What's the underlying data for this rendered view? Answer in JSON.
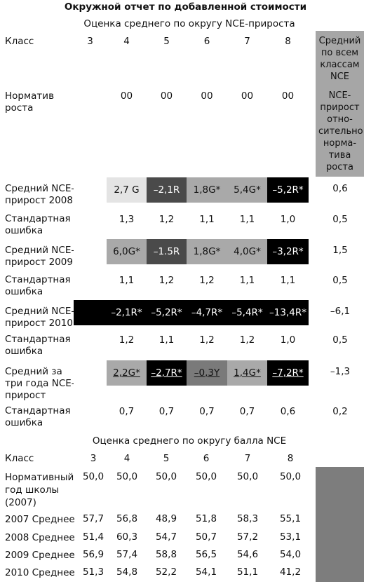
{
  "title": "Окружной отчет по добавленной стоимости",
  "section1": {
    "subtitle": "Оценка среднего по округу NCE-прироста",
    "class_label": "Класс",
    "classes": [
      "3",
      "4",
      "5",
      "6",
      "7",
      "8"
    ],
    "side_header": "Средний по всем классам NCE",
    "side_sub": "NCE-прирост отно-сительно норма-тива роста",
    "norm_label": "Норматив роста",
    "norm_values": [
      "",
      "00",
      "00",
      "00",
      "00",
      "00"
    ],
    "rows": [
      {
        "label": "Средний NCE-прирост 2008",
        "cells": [
          {
            "text": "",
            "bg": "#ffffff"
          },
          {
            "text": "2,7 G",
            "bg": "#e4e4e4"
          },
          {
            "text": "–2,1R",
            "bg": "#4a4a4a"
          },
          {
            "text": "1,8G*",
            "bg": "#a9a9a9"
          },
          {
            "text": "5,4G*",
            "bg": "#a9a9a9"
          },
          {
            "text": "–5,2R*",
            "bg": "#000000"
          }
        ],
        "avg": "0,6",
        "se_label": "Стандартная ошибка",
        "se": [
          "1,3",
          "1,2",
          "1,1",
          "1,1",
          "1,0"
        ],
        "se_avg": "0,5"
      },
      {
        "label": "Средний NCE-прирост 2009",
        "cells": [
          {
            "text": "",
            "bg": "#ffffff"
          },
          {
            "text": "6,0G*",
            "bg": "#a9a9a9"
          },
          {
            "text": "–1.5R",
            "bg": "#4a4a4a"
          },
          {
            "text": "1,8G*",
            "bg": "#a9a9a9"
          },
          {
            "text": "4,0G*",
            "bg": "#a9a9a9"
          },
          {
            "text": "–3,2R*",
            "bg": "#000000"
          }
        ],
        "avg": "1,5",
        "se_label": "Стандартная ошибка",
        "se": [
          "1,1",
          "1,2",
          "1,2",
          "1,1",
          "1,1"
        ],
        "se_avg": "0,5"
      },
      {
        "label": "Средний NCE-прирост 2010",
        "cells": [
          {
            "text": "",
            "bg": "#000000"
          },
          {
            "text": "–2,1R*",
            "bg": "#000000"
          },
          {
            "text": "–5,2R*",
            "bg": "#000000"
          },
          {
            "text": "–4,7R*",
            "bg": "#000000"
          },
          {
            "text": "–5,4R*",
            "bg": "#000000"
          },
          {
            "text": "–13,4R*",
            "bg": "#000000"
          }
        ],
        "avg": "–6,1",
        "se_label": "Стандартная ошибка",
        "se": [
          "1,2",
          "1,1",
          "1,2",
          "1,2",
          "1,0"
        ],
        "se_avg": "0,5"
      },
      {
        "label": "Средний за три года NCE-прирост",
        "cells": [
          {
            "text": "",
            "bg": "#ffffff"
          },
          {
            "text": "2,2G*",
            "bg": "#a9a9a9"
          },
          {
            "text": "–2,7R*",
            "bg": "#000000"
          },
          {
            "text": "–0,3Y",
            "bg": "#7a7a7a"
          },
          {
            "text": "1,4G*",
            "bg": "#a9a9a9"
          },
          {
            "text": "–7,2R*",
            "bg": "#000000"
          }
        ],
        "avg": "–1,3",
        "se_label": "Стандартная ошибка",
        "se": [
          "0,7",
          "0,7",
          "0,7",
          "0,7",
          "0,6"
        ],
        "se_avg": "0,2"
      }
    ]
  },
  "section2": {
    "subtitle": "Оценка среднего по округу балла NCE",
    "class_label": "Класс",
    "classes": [
      "3",
      "4",
      "5",
      "6",
      "7",
      "8"
    ],
    "rows": [
      {
        "label": "Нормативный год школы (2007)",
        "values": [
          "50,0",
          "50,0",
          "50,0",
          "50,0",
          "50,0",
          "50,0"
        ]
      },
      {
        "label": "2007 Среднее",
        "values": [
          "57,7",
          "56,8",
          "48,9",
          "51,8",
          "58,3",
          "55,1"
        ]
      },
      {
        "label": "2008 Среднее",
        "values": [
          "51,4",
          "60,3",
          "54,7",
          "50,7",
          "57,2",
          "53,1"
        ]
      },
      {
        "label": "2009 Среднее",
        "values": [
          "56,9",
          "57,4",
          "58,8",
          "56,5",
          "54,6",
          "54,0"
        ]
      },
      {
        "label": "2010 Среднее",
        "values": [
          "51,3",
          "54,8",
          "52,2",
          "54,1",
          "51,1",
          "41,2"
        ]
      }
    ]
  }
}
